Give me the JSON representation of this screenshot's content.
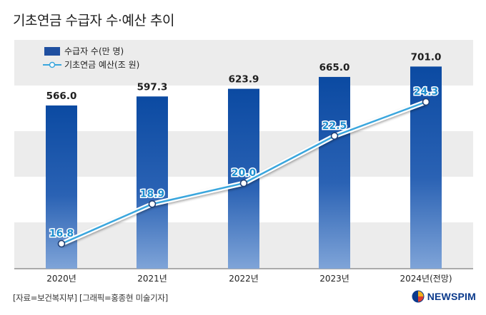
{
  "page_title": "기초연금 수급자 수·예산 추이",
  "source_note": "[자료=보건복지부] [그래픽=홍종현 미술기자]",
  "logo_text": "NEWSPIM",
  "colors": {
    "bar": "#1f56a5",
    "line": "#3aa6dd",
    "band": "#ececec"
  },
  "chart_data": {
    "type": "bar",
    "categories": [
      "2020년",
      "2021년",
      "2022년",
      "2023년",
      "2024년(전망)"
    ],
    "series": [
      {
        "name": "수급자 수(만 명)",
        "type": "bar",
        "values": [
          566.0,
          597.3,
          623.9,
          665.0,
          701.0
        ],
        "labels": [
          "566.0",
          "597.3",
          "623.9",
          "665.0",
          "701.0"
        ]
      },
      {
        "name": "기초연금 예산(조 원)",
        "type": "line",
        "values": [
          16.8,
          18.9,
          20.0,
          22.5,
          24.3
        ],
        "labels": [
          "16.8",
          "18.9",
          "20.0",
          "22.5",
          "24.3"
        ]
      }
    ],
    "legend": "top-left",
    "grid": "alternating horizontal bands"
  }
}
